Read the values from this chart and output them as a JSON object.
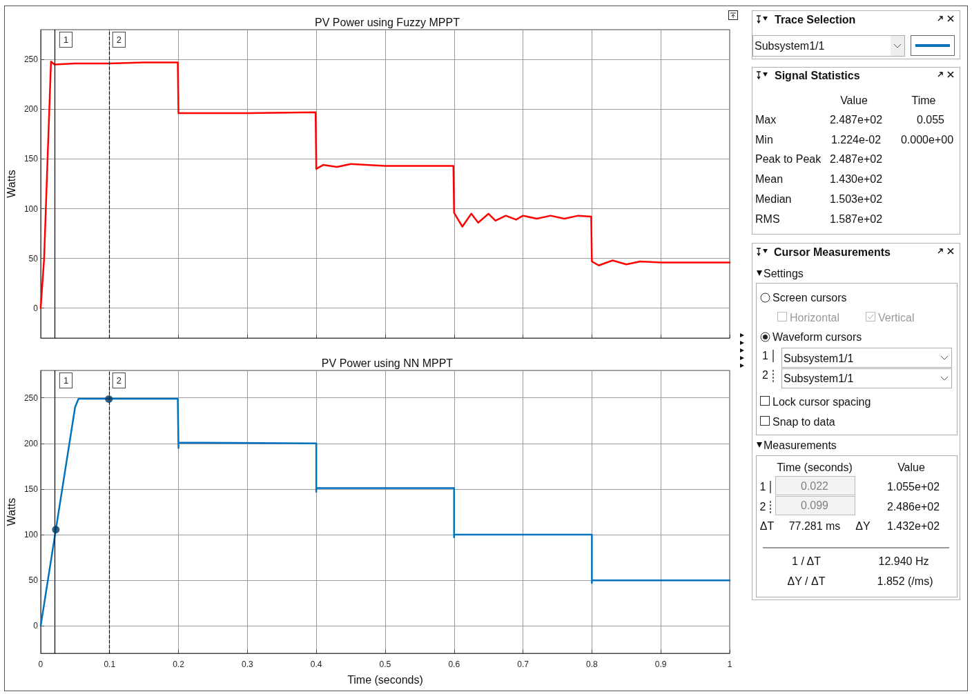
{
  "chart_data": [
    {
      "type": "line",
      "title": "PV Power using Fuzzy MPPT",
      "ylabel": "Watts",
      "xlim": [
        0,
        1
      ],
      "xticks": [
        0,
        0.1,
        0.2,
        0.3,
        0.4,
        0.5,
        0.6,
        0.7,
        0.8,
        0.9,
        1
      ],
      "ylim": [
        -30,
        280
      ],
      "yticks": [
        0,
        50,
        100,
        150,
        200,
        250
      ],
      "grid": true,
      "tick_labels": "y",
      "series": [
        {
          "color": "#ff0000",
          "x": [
            0,
            0.005,
            0.01,
            0.015,
            0.02,
            0.05,
            0.1,
            0.15,
            0.199,
            0.2,
            0.3,
            0.399,
            0.4,
            0.41,
            0.43,
            0.45,
            0.5,
            0.599,
            0.6,
            0.605,
            0.612,
            0.625,
            0.635,
            0.65,
            0.66,
            0.675,
            0.69,
            0.7,
            0.72,
            0.74,
            0.76,
            0.78,
            0.799,
            0.8,
            0.81,
            0.83,
            0.85,
            0.87,
            0.9,
            1
          ],
          "values": [
            0,
            50,
            150,
            248,
            245,
            246,
            246,
            247,
            247,
            196,
            196,
            197,
            140,
            144,
            142,
            145,
            143,
            143,
            96,
            90,
            82,
            95,
            86,
            95,
            88,
            93,
            89,
            93,
            90,
            93,
            90,
            93,
            92,
            47,
            43,
            48,
            44,
            47,
            46,
            46
          ]
        }
      ],
      "annotations": [
        "1",
        "2"
      ],
      "ref_lines": [
        {
          "axis": "x",
          "value": 0.022,
          "color": "#000000",
          "line_style": "solid"
        },
        {
          "axis": "x",
          "value": 0.099,
          "color": "#000000",
          "line_style": "dashed"
        }
      ]
    },
    {
      "type": "line",
      "title": "PV Power using NN MPPT",
      "xlabel": "Time (seconds)",
      "ylabel": "Watts",
      "xlim": [
        0,
        1
      ],
      "xticks": [
        0,
        0.1,
        0.2,
        0.3,
        0.4,
        0.5,
        0.6,
        0.7,
        0.8,
        0.9,
        1
      ],
      "ylim": [
        -30,
        280
      ],
      "yticks": [
        0,
        50,
        100,
        150,
        200,
        250
      ],
      "grid": true,
      "series": [
        {
          "color": "#0072bd",
          "x": [
            0,
            0.022,
            0.05,
            0.055,
            0.1,
            0.199,
            0.2,
            0.2,
            0.4,
            0.4,
            0.4,
            0.6,
            0.6,
            0.6,
            0.8,
            0.8,
            0.8,
            1
          ],
          "values": [
            0,
            105.5,
            240,
            249,
            249,
            249,
            195,
            201,
            200,
            147,
            151,
            151,
            97,
            100,
            100,
            47,
            50,
            50
          ]
        },
        {
          "type": "scatter",
          "color": "#003a63",
          "marker": "circle",
          "x": [
            0.022,
            0.099
          ],
          "values": [
            105.5,
            248.6
          ]
        }
      ],
      "annotations": [
        "1",
        "2"
      ],
      "ref_lines": [
        {
          "axis": "x",
          "value": 0.022,
          "color": "#000000",
          "line_style": "solid"
        },
        {
          "axis": "x",
          "value": 0.099,
          "color": "#000000",
          "line_style": "dashed"
        }
      ]
    },
    {
      "type": "other",
      "title": "Trace Selection",
      "annotations": [
        "Subsystem1/1"
      ]
    },
    {
      "type": "other",
      "title": "Signal Statistics",
      "annotations": [
        "Value",
        "Time",
        "Max",
        "2.487e+02",
        "0.055",
        "Min",
        "1.224e-02",
        "0.000e+00",
        "Peak to Peak",
        "2.487e+02",
        "Mean",
        "1.430e+02",
        "Median",
        "1.503e+02",
        "RMS",
        "1.587e+02"
      ]
    },
    {
      "type": "other",
      "title": "Cursor Measurements",
      "annotations": [
        "Settings",
        "Screen cursors",
        "Horizontal",
        "Vertical",
        "Waveform cursors",
        "1",
        "Subsystem1/1",
        "2",
        "Subsystem1/1",
        "Lock cursor spacing",
        "Snap to data",
        "Measurements",
        "Time (seconds)",
        "Value",
        "1",
        "0.022",
        "1.055e+02",
        "2",
        "0.099",
        "2.486e+02",
        "ΔT",
        "77.281 ms",
        "ΔY",
        "1.432e+02",
        "1 / ΔT",
        "12.940 Hz",
        "ΔY / ΔT",
        "1.852 (/ms)"
      ]
    }
  ]
}
